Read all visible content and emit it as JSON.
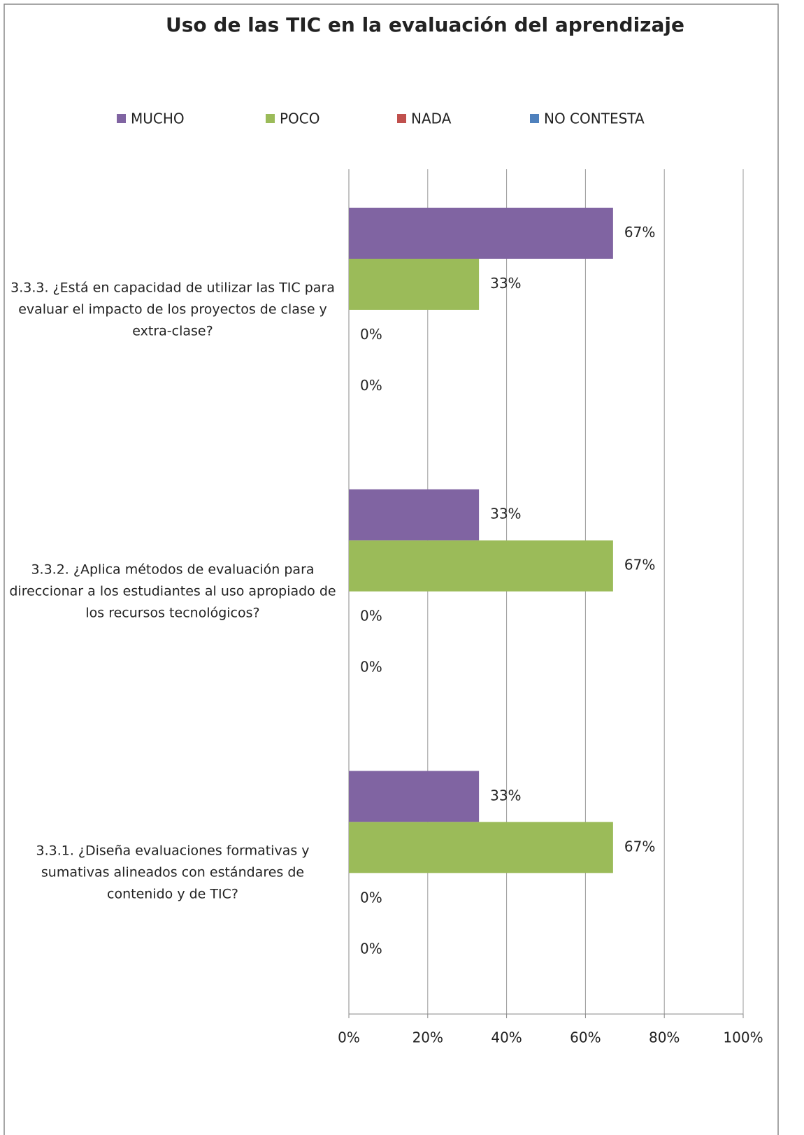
{
  "chart_data": {
    "type": "hbar",
    "title": "Uso de las TIC en la evaluación del aprendizaje",
    "categories": [
      "3.3.3. ¿Está en capacidad de utilizar las TIC para evaluar el impacto de los proyectos de clase y extra-clase?",
      "3.3.2. ¿Aplica métodos de evaluación para direccionar a los estudiantes al uso apropiado de los recursos tecnológicos?",
      "3.3.1. ¿Diseña evaluaciones formativas y sumativas alineados con estándares de contenido y de TIC?"
    ],
    "series": [
      {
        "name": "MUCHO",
        "color": "#8064a2",
        "values": [
          67,
          33,
          33
        ],
        "value_labels": [
          "67%",
          "33%",
          "33%"
        ]
      },
      {
        "name": "POCO",
        "color": "#9bbb59",
        "values": [
          33,
          67,
          67
        ],
        "value_labels": [
          "33%",
          "67%",
          "67%"
        ]
      },
      {
        "name": "NADA",
        "color": "#c0504d",
        "values": [
          0,
          0,
          0
        ],
        "value_labels": [
          "0%",
          "0%",
          "0%"
        ]
      },
      {
        "name": "NO CONTESTA",
        "color": "#4f81bd",
        "values": [
          0,
          0,
          0
        ],
        "value_labels": [
          "0%",
          "0%",
          "0%"
        ]
      }
    ],
    "xlim": [
      0,
      100
    ],
    "xticks": [
      {
        "value": 0,
        "label": "0%"
      },
      {
        "value": 20,
        "label": "20%"
      },
      {
        "value": 40,
        "label": "40%"
      },
      {
        "value": 60,
        "label": "60%"
      },
      {
        "value": 80,
        "label": "80%"
      },
      {
        "value": 100,
        "label": "100%"
      }
    ],
    "grid": true,
    "legend": "top"
  }
}
